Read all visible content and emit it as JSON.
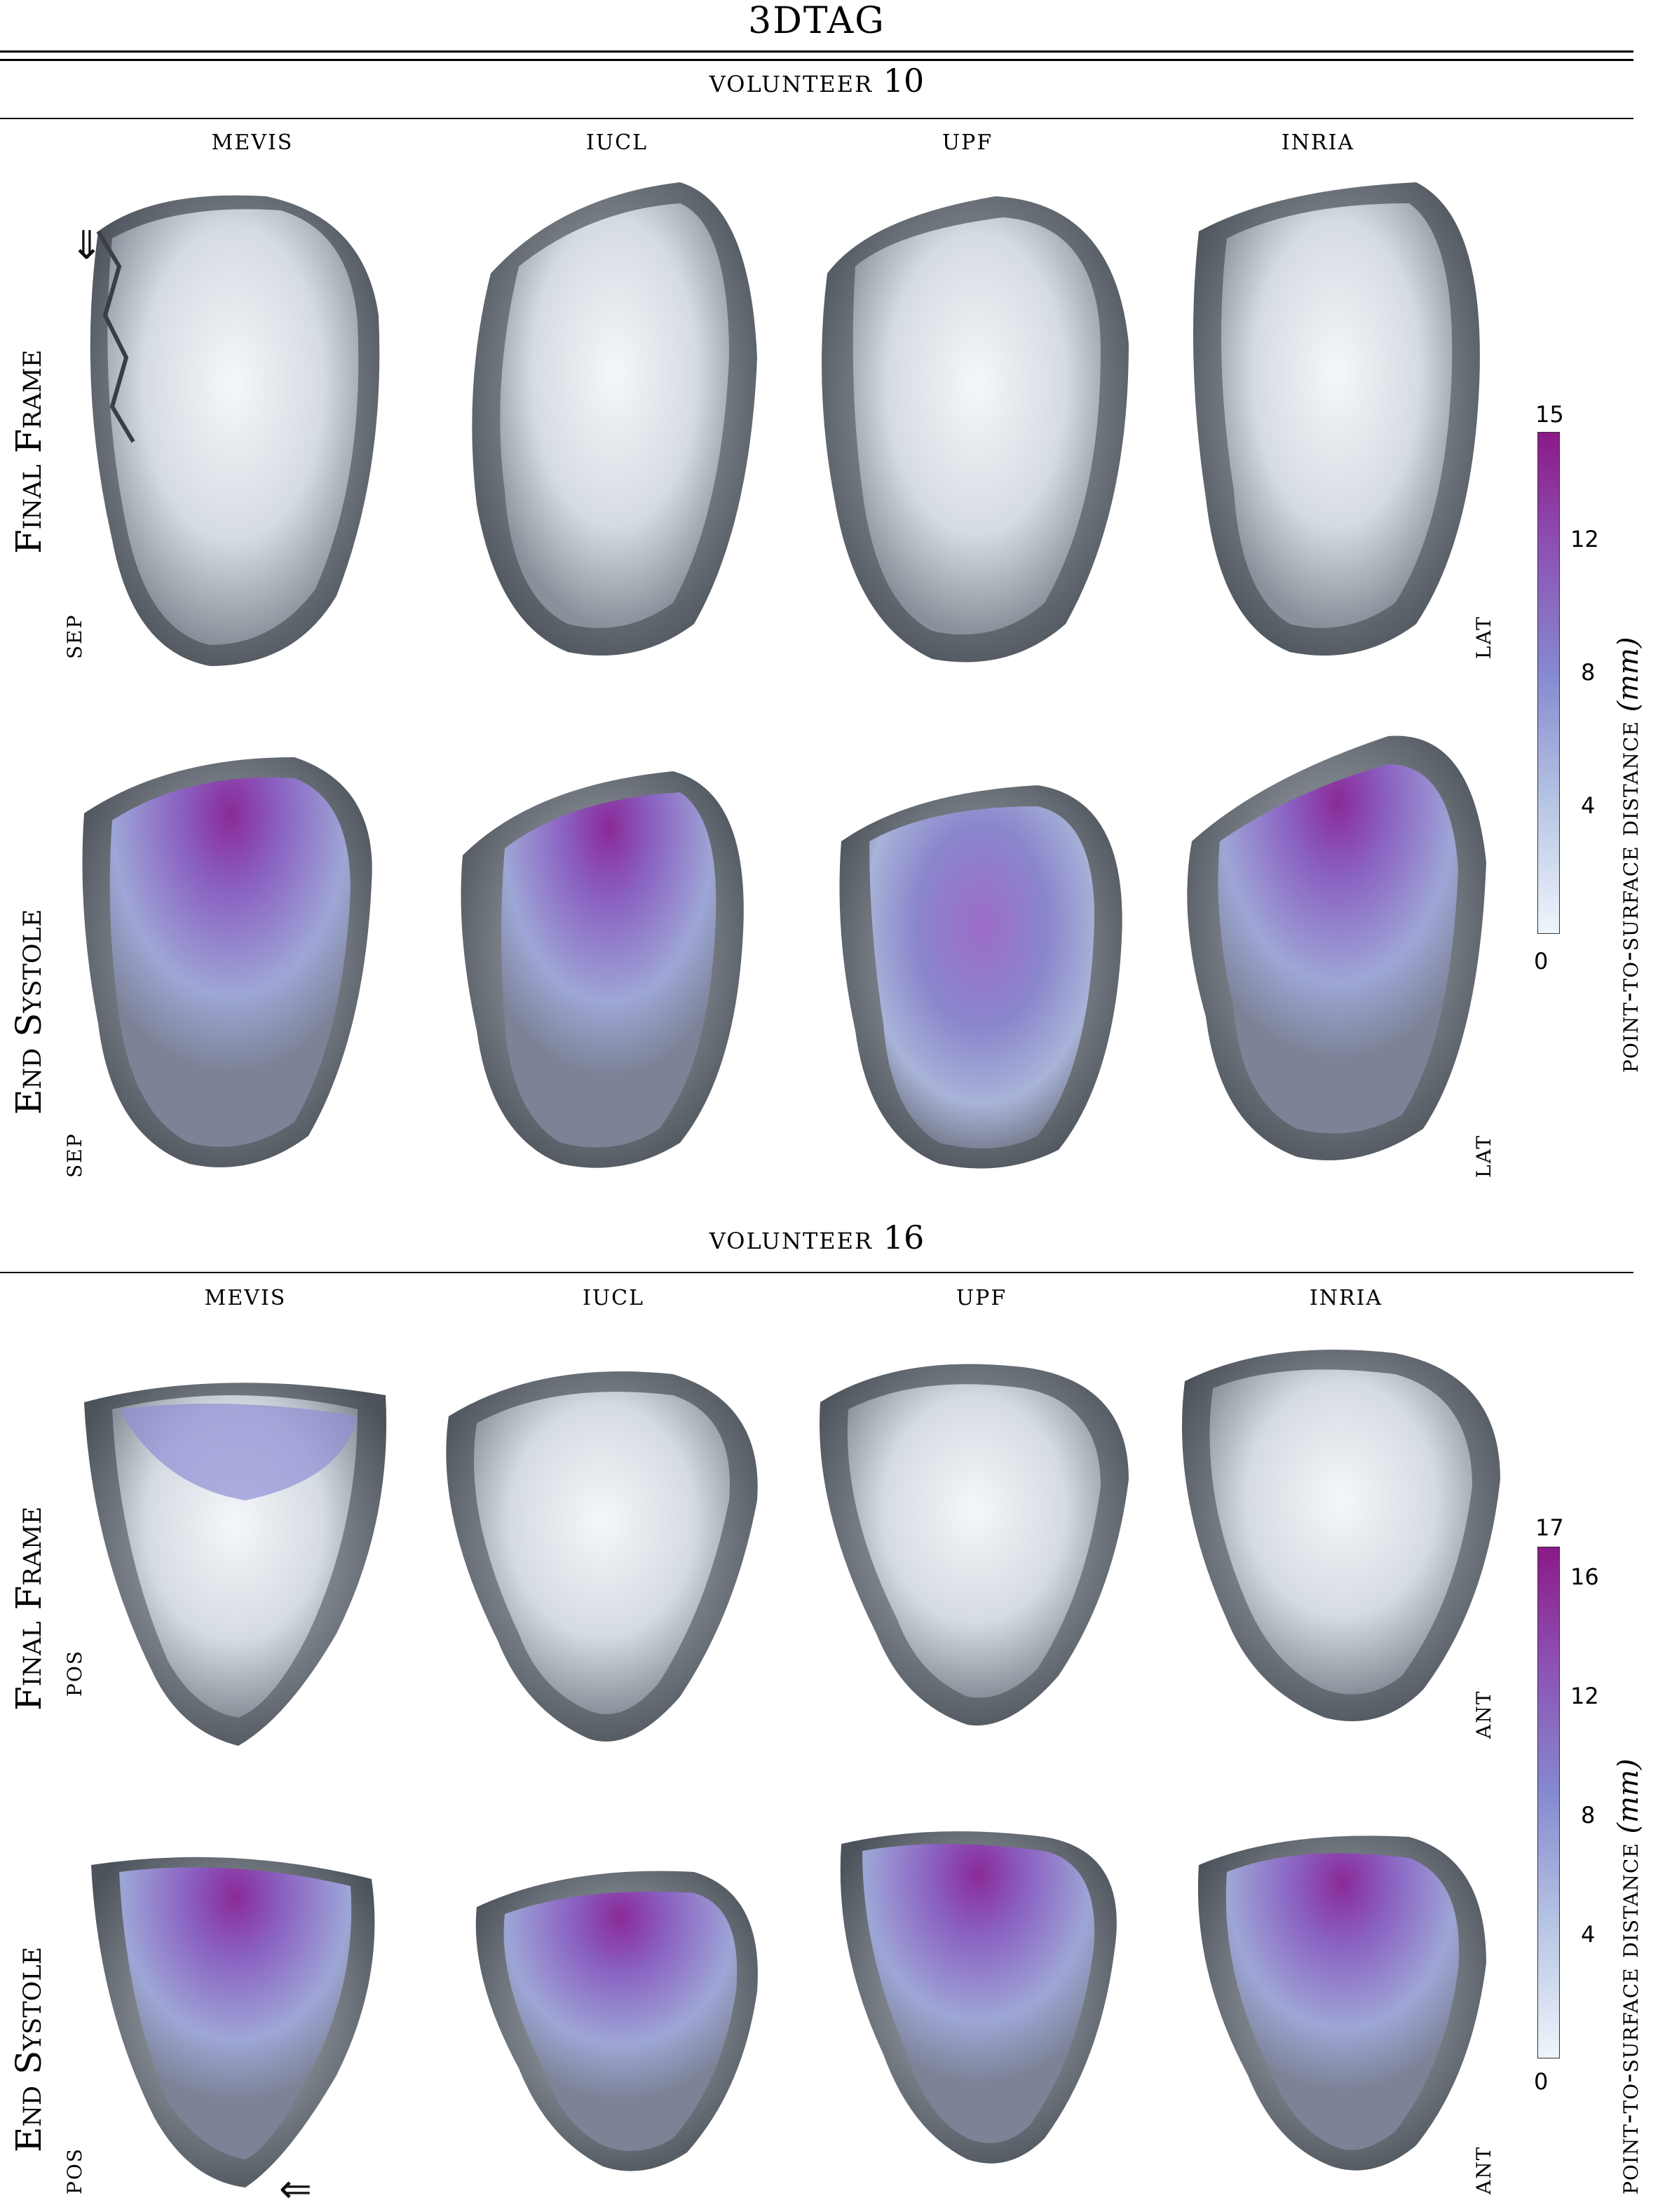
{
  "title": "3DTAG",
  "sections": [
    {
      "heading_text": "volunteer",
      "heading_number": "10",
      "columns": [
        "MEVIS",
        "IUCL",
        "UPF",
        "INRIA"
      ],
      "rows": [
        {
          "label": "Final Frame",
          "left_label": "SEP",
          "right_label": "LAT"
        },
        {
          "label": "End Systole",
          "left_label": "SEP",
          "right_label": "LAT"
        }
      ],
      "colorbar": {
        "min_label": "0",
        "max_label": "15",
        "ticks": [
          "15",
          "12",
          "8",
          "4",
          "0"
        ],
        "tick_values": [
          15,
          12,
          8,
          4,
          0
        ],
        "max": 15
      },
      "colorbar_label_text": "point-to-surface distance",
      "colorbar_unit": "(mm)"
    },
    {
      "heading_text": "volunteer",
      "heading_number": "16",
      "columns": [
        "MEVIS",
        "IUCL",
        "UPF",
        "INRIA"
      ],
      "rows": [
        {
          "label": "Final Frame",
          "left_label": "POS",
          "right_label": "ANT"
        },
        {
          "label": "End Systole",
          "left_label": "POS",
          "right_label": "ANT"
        }
      ],
      "colorbar": {
        "ticks": [
          "17",
          "16",
          "12",
          "8",
          "4",
          "0"
        ],
        "tick_values": [
          17,
          16,
          12,
          8,
          4,
          0
        ],
        "max": 17
      },
      "colorbar_label_text": "point-to-surface distance",
      "colorbar_unit": "(mm)"
    }
  ],
  "colors": {
    "low": "#eef5fb",
    "mid": "#8589cf",
    "high": "#8b1a86",
    "tissue": "#9ea4ad"
  }
}
